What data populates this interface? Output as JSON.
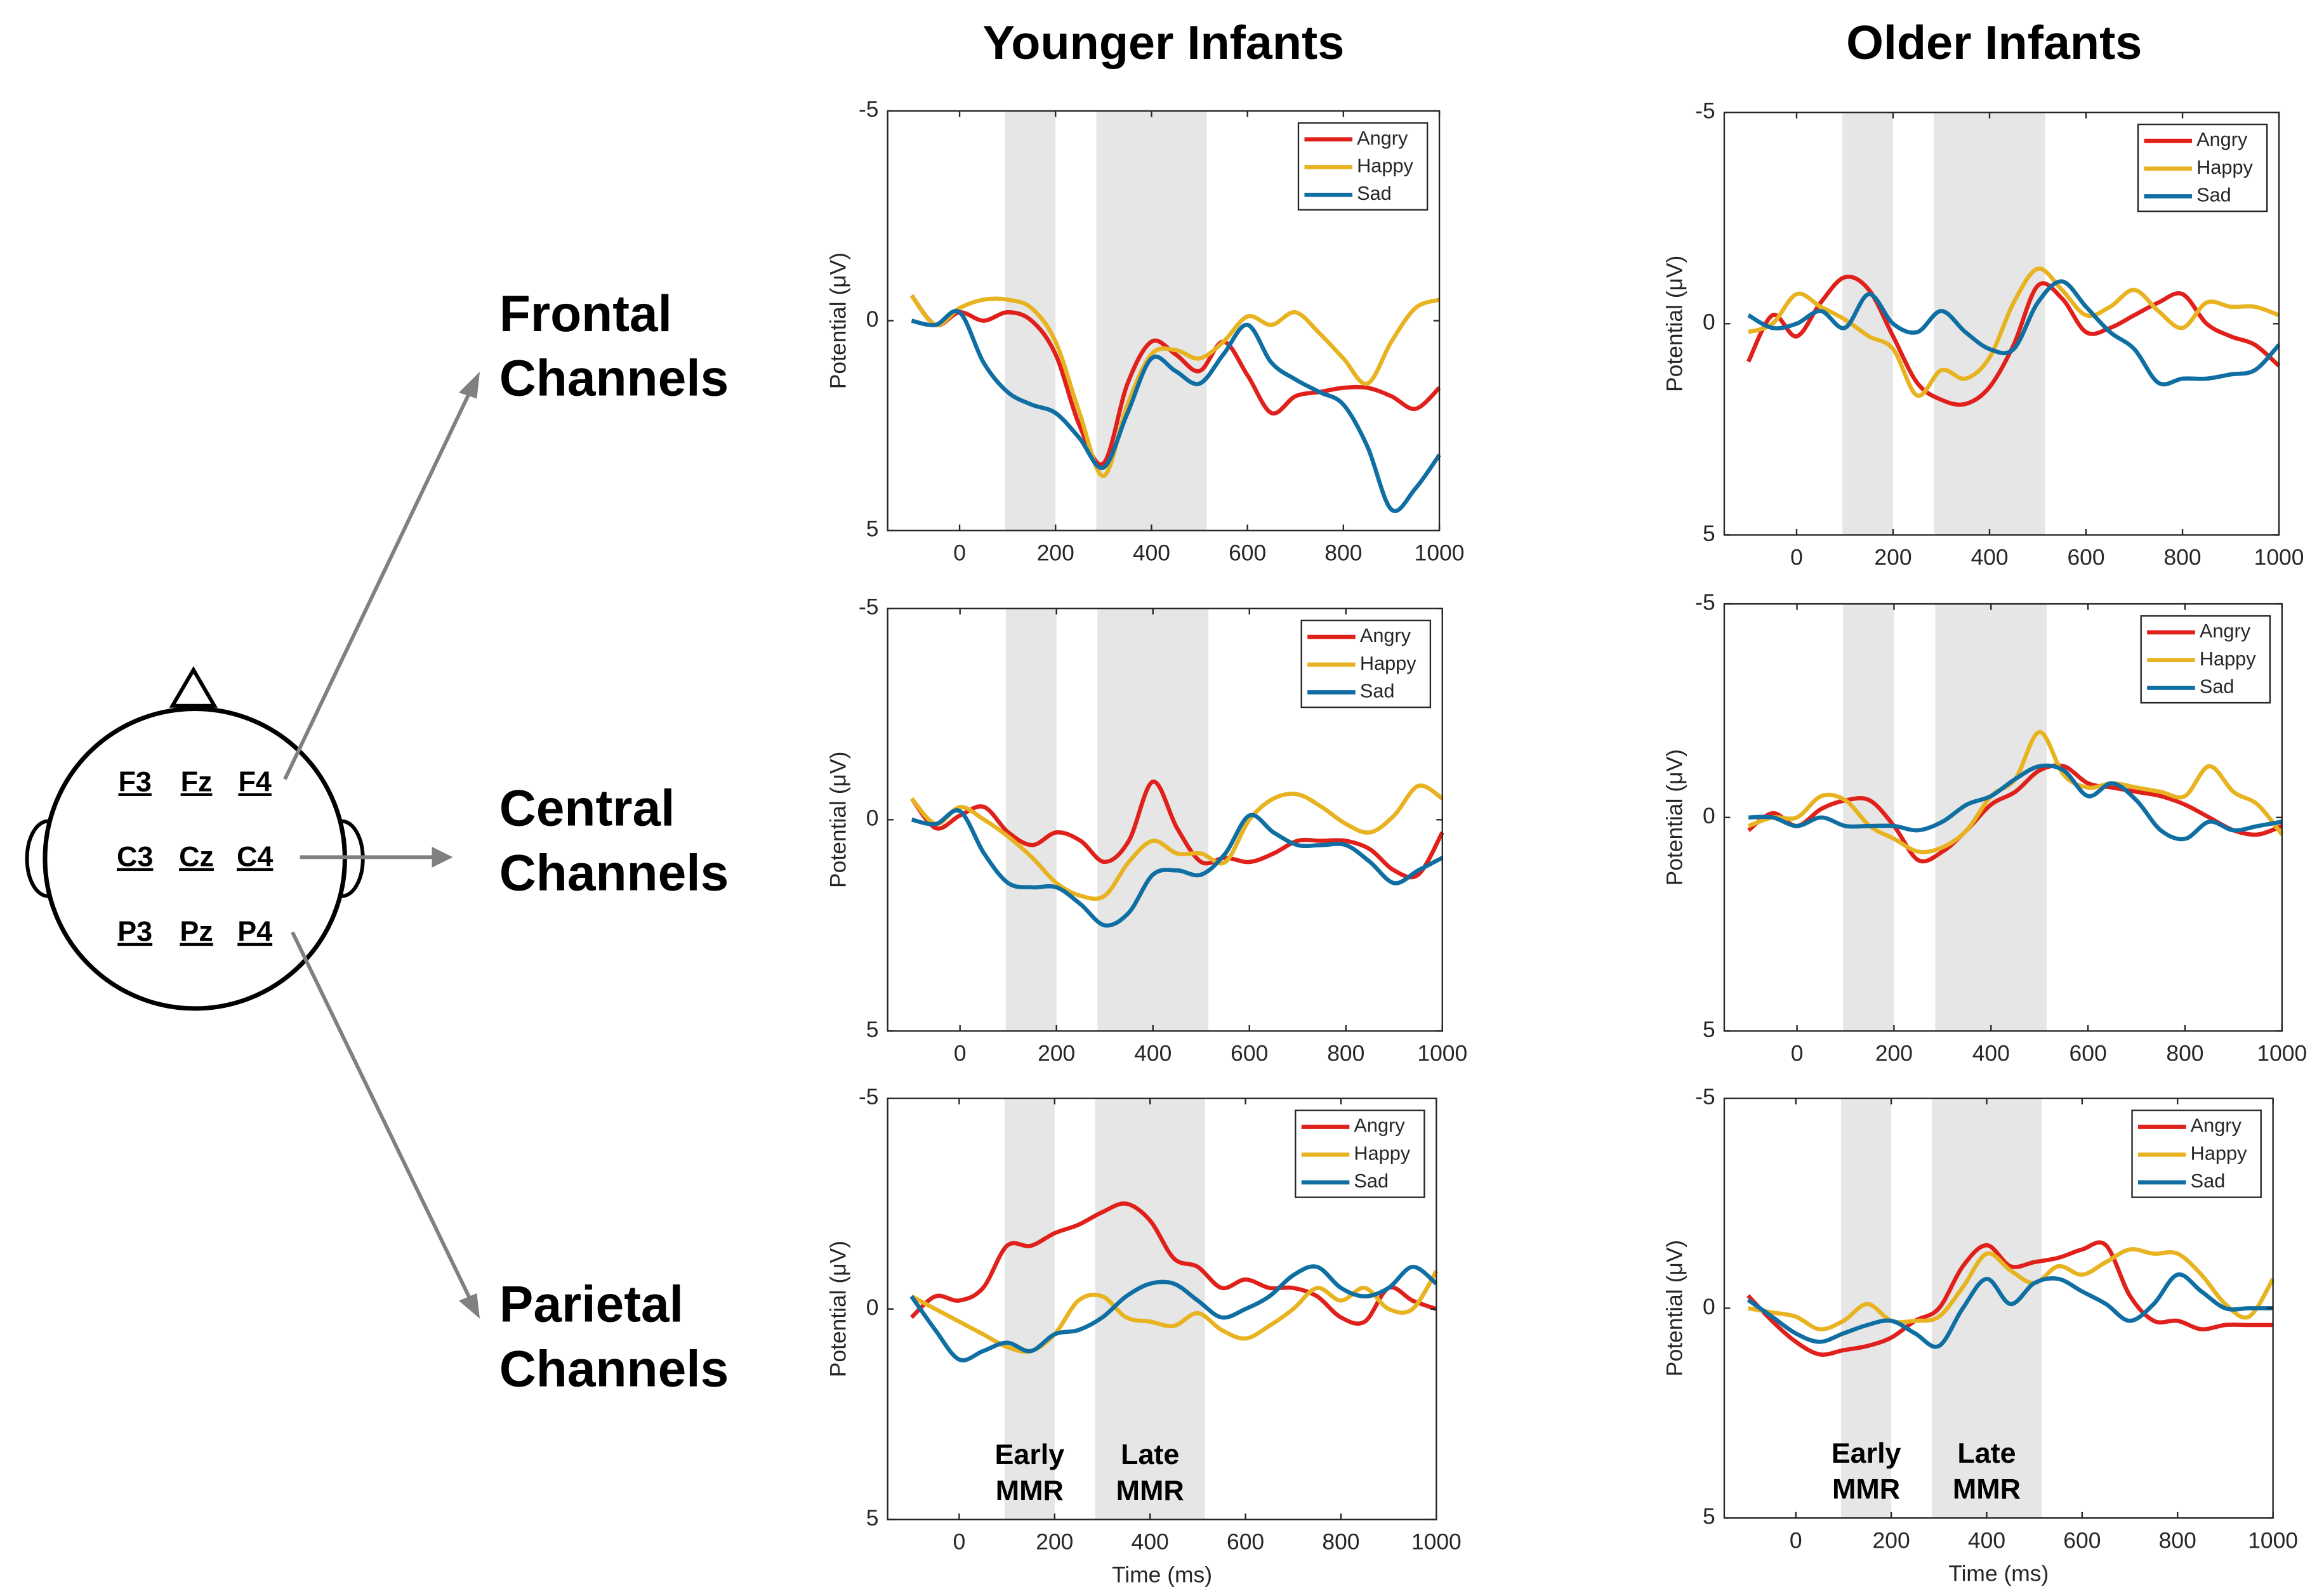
{
  "column_titles": [
    "Younger Infants",
    "Older Infants"
  ],
  "row_labels": [
    [
      "Frontal",
      "Channels"
    ],
    [
      "Central",
      "Channels"
    ],
    [
      "Parietal",
      "Channels"
    ]
  ],
  "electrode_rows": [
    [
      "F3",
      "Fz",
      "F4"
    ],
    [
      "C3",
      "Cz",
      "C4"
    ],
    [
      "P3",
      "Pz",
      "P4"
    ]
  ],
  "chart_data": [
    {
      "type": "line",
      "x": [
        -100,
        -50,
        0,
        50,
        100,
        150,
        200,
        250,
        300,
        350,
        400,
        450,
        500,
        550,
        600,
        650,
        700,
        750,
        800,
        850,
        900,
        950,
        1000
      ],
      "xlim": [
        -150,
        1000
      ],
      "xticks": [
        0,
        200,
        400,
        600,
        800,
        1000
      ],
      "ylim": [
        -5,
        5
      ],
      "yticks": [
        -5,
        0,
        5
      ],
      "y_inverted": true,
      "ylabel": "Potential (μV)",
      "shaded_regions": [
        [
          95,
          200
        ],
        [
          285,
          515
        ]
      ],
      "legend": "upper right",
      "series": [
        {
          "name": "Angry",
          "color": "#e0201b",
          "values": [
            -0.6,
            0.1,
            -0.2,
            0,
            -0.2,
            0,
            0.8,
            2.5,
            3.4,
            1.5,
            0.5,
            0.8,
            1.2,
            0.5,
            1.3,
            2.2,
            1.8,
            1.7,
            1.6,
            1.6,
            1.8,
            2.1,
            1.6
          ]
        },
        {
          "name": "Happy",
          "color": "#e8b321",
          "values": [
            -0.6,
            0.1,
            -0.3,
            -0.5,
            -0.5,
            -0.3,
            0.5,
            2.2,
            3.7,
            2.0,
            0.8,
            0.7,
            0.9,
            0.5,
            -0.1,
            0.1,
            -0.2,
            0.3,
            0.9,
            1.5,
            0.5,
            -0.3,
            -0.5
          ]
        },
        {
          "name": "Sad",
          "color": "#0f6fa3",
          "values": [
            0,
            0.1,
            -0.2,
            1.0,
            1.7,
            2.0,
            2.2,
            2.8,
            3.5,
            2.2,
            0.9,
            1.2,
            1.5,
            0.8,
            0.1,
            1.0,
            1.4,
            1.7,
            2.0,
            3.0,
            4.5,
            4.0,
            3.2
          ]
        }
      ]
    },
    {
      "type": "line",
      "x": [
        -100,
        -50,
        0,
        50,
        100,
        150,
        200,
        250,
        300,
        350,
        400,
        450,
        500,
        550,
        600,
        650,
        700,
        750,
        800,
        850,
        900,
        950,
        1000
      ],
      "xlim": [
        -150,
        1000
      ],
      "xticks": [
        0,
        200,
        400,
        600,
        800,
        1000
      ],
      "ylim": [
        -5,
        5
      ],
      "yticks": [
        -5,
        0,
        5
      ],
      "y_inverted": true,
      "ylabel": "Potential (μV)",
      "shaded_regions": [
        [
          95,
          200
        ],
        [
          285,
          515
        ]
      ],
      "legend": "upper right",
      "series": [
        {
          "name": "Angry",
          "color": "#e0201b",
          "values": [
            0.9,
            -0.2,
            0.3,
            -0.5,
            -1.1,
            -0.8,
            0.3,
            1.4,
            1.8,
            1.9,
            1.5,
            0.5,
            -0.9,
            -0.6,
            0.2,
            0.1,
            -0.2,
            -0.5,
            -0.7,
            0,
            0.3,
            0.5,
            1.0
          ]
        },
        {
          "name": "Happy",
          "color": "#e8b321",
          "values": [
            0.2,
            0,
            -0.7,
            -0.4,
            -0.1,
            0.3,
            0.6,
            1.7,
            1.1,
            1.3,
            0.8,
            -0.5,
            -1.3,
            -0.8,
            -0.2,
            -0.4,
            -0.8,
            -0.3,
            0.1,
            -0.5,
            -0.4,
            -0.4,
            -0.2
          ]
        },
        {
          "name": "Sad",
          "color": "#0f6fa3",
          "values": [
            -0.2,
            0.1,
            0,
            -0.3,
            0.1,
            -0.7,
            0,
            0.2,
            -0.3,
            0.2,
            0.6,
            0.6,
            -0.5,
            -1.0,
            -0.4,
            0.2,
            0.6,
            1.4,
            1.3,
            1.3,
            1.2,
            1.1,
            0.5
          ]
        }
      ]
    },
    {
      "type": "line",
      "x": [
        -100,
        -50,
        0,
        50,
        100,
        150,
        200,
        250,
        300,
        350,
        400,
        450,
        500,
        550,
        600,
        650,
        700,
        750,
        800,
        850,
        900,
        950,
        1000
      ],
      "xlim": [
        -150,
        1000
      ],
      "xticks": [
        0,
        200,
        400,
        600,
        800,
        1000
      ],
      "ylim": [
        -5,
        5
      ],
      "yticks": [
        -5,
        0,
        5
      ],
      "y_inverted": true,
      "ylabel": "Potential (μV)",
      "shaded_regions": [
        [
          95,
          200
        ],
        [
          285,
          515
        ]
      ],
      "legend": "upper right",
      "series": [
        {
          "name": "Angry",
          "color": "#e0201b",
          "values": [
            -0.5,
            0.2,
            -0.1,
            -0.3,
            0.3,
            0.6,
            0.3,
            0.5,
            1.0,
            0.5,
            -0.9,
            0.2,
            1.0,
            0.9,
            1.0,
            0.8,
            0.5,
            0.5,
            0.5,
            0.7,
            1.2,
            1.3,
            0.3
          ]
        },
        {
          "name": "Happy",
          "color": "#e8b321",
          "values": [
            -0.5,
            0.1,
            -0.3,
            0,
            0.4,
            0.9,
            1.5,
            1.8,
            1.8,
            1.0,
            0.5,
            0.8,
            0.8,
            1.0,
            0,
            -0.5,
            -0.6,
            -0.3,
            0.1,
            0.3,
            -0.1,
            -0.8,
            -0.5
          ]
        },
        {
          "name": "Sad",
          "color": "#0f6fa3",
          "values": [
            0,
            0.1,
            -0.2,
            0.8,
            1.5,
            1.6,
            1.6,
            2.0,
            2.5,
            2.2,
            1.3,
            1.2,
            1.3,
            0.8,
            -0.1,
            0.3,
            0.6,
            0.6,
            0.6,
            1.0,
            1.5,
            1.2,
            0.9
          ]
        }
      ]
    },
    {
      "type": "line",
      "x": [
        -100,
        -50,
        0,
        50,
        100,
        150,
        200,
        250,
        300,
        350,
        400,
        450,
        500,
        550,
        600,
        650,
        700,
        750,
        800,
        850,
        900,
        950,
        1000
      ],
      "xlim": [
        -150,
        1000
      ],
      "xticks": [
        0,
        200,
        400,
        600,
        800,
        1000
      ],
      "ylim": [
        -5,
        5
      ],
      "yticks": [
        -5,
        0,
        5
      ],
      "y_inverted": true,
      "ylabel": "Potential (μV)",
      "shaded_regions": [
        [
          95,
          200
        ],
        [
          285,
          515
        ]
      ],
      "legend": "upper right",
      "series": [
        {
          "name": "Angry",
          "color": "#e0201b",
          "values": [
            0.3,
            -0.1,
            0.2,
            -0.2,
            -0.4,
            -0.4,
            0.2,
            1.0,
            0.8,
            0.3,
            -0.3,
            -0.6,
            -1.1,
            -1.2,
            -0.8,
            -0.7,
            -0.6,
            -0.5,
            -0.3,
            0,
            0.3,
            0.4,
            0.2
          ]
        },
        {
          "name": "Happy",
          "color": "#e8b321",
          "values": [
            0.2,
            0,
            0,
            -0.5,
            -0.4,
            0.2,
            0.5,
            0.8,
            0.7,
            0.3,
            -0.5,
            -0.9,
            -2.0,
            -1.0,
            -0.7,
            -0.8,
            -0.7,
            -0.6,
            -0.5,
            -1.2,
            -0.6,
            -0.3,
            0.4
          ]
        },
        {
          "name": "Sad",
          "color": "#0f6fa3",
          "values": [
            0,
            0,
            0.2,
            0,
            0.2,
            0.2,
            0.2,
            0.3,
            0.1,
            -0.3,
            -0.5,
            -0.9,
            -1.2,
            -1.1,
            -0.5,
            -0.8,
            -0.4,
            0.3,
            0.5,
            0.1,
            0.3,
            0.2,
            0.1
          ]
        }
      ]
    },
    {
      "type": "line",
      "x": [
        -100,
        -50,
        0,
        50,
        100,
        150,
        200,
        250,
        300,
        350,
        400,
        450,
        500,
        550,
        600,
        650,
        700,
        750,
        800,
        850,
        900,
        950,
        1000
      ],
      "xlim": [
        -150,
        1000
      ],
      "xticks": [
        0,
        200,
        400,
        600,
        800,
        1000
      ],
      "ylim": [
        -5,
        5
      ],
      "yticks": [
        -5,
        0,
        5
      ],
      "y_inverted": true,
      "ylabel": "Potential (μV)",
      "xlabel": "Time (ms)",
      "shaded_regions": [
        [
          95,
          200
        ],
        [
          285,
          515
        ]
      ],
      "legend": "upper right",
      "annotations": [
        [
          "Early",
          "MMR"
        ],
        [
          "Late",
          "MMR"
        ]
      ],
      "series": [
        {
          "name": "Angry",
          "color": "#e0201b",
          "values": [
            0.2,
            -0.3,
            -0.2,
            -0.5,
            -1.5,
            -1.5,
            -1.8,
            -2.0,
            -2.3,
            -2.5,
            -2.1,
            -1.2,
            -1.0,
            -0.5,
            -0.7,
            -0.5,
            -0.5,
            -0.3,
            0.2,
            0.3,
            -0.5,
            -0.2,
            0
          ]
        },
        {
          "name": "Happy",
          "color": "#e8b321",
          "values": [
            -0.3,
            0,
            0.3,
            0.6,
            0.9,
            1.0,
            0.6,
            -0.2,
            -0.3,
            0.2,
            0.3,
            0.4,
            0.1,
            0.5,
            0.7,
            0.4,
            0,
            -0.5,
            -0.2,
            -0.5,
            0,
            0,
            -0.9
          ]
        },
        {
          "name": "Sad",
          "color": "#0f6fa3",
          "values": [
            -0.3,
            0.5,
            1.2,
            1.0,
            0.8,
            1.0,
            0.6,
            0.5,
            0.2,
            -0.3,
            -0.6,
            -0.6,
            -0.2,
            0.2,
            0,
            -0.3,
            -0.8,
            -1.0,
            -0.5,
            -0.3,
            -0.5,
            -1.0,
            -0.6
          ]
        }
      ]
    },
    {
      "type": "line",
      "x": [
        -100,
        -50,
        0,
        50,
        100,
        150,
        200,
        250,
        300,
        350,
        400,
        450,
        500,
        550,
        600,
        650,
        700,
        750,
        800,
        850,
        900,
        950,
        1000
      ],
      "xlim": [
        -150,
        1000
      ],
      "xticks": [
        0,
        200,
        400,
        600,
        800,
        1000
      ],
      "ylim": [
        -5,
        5
      ],
      "yticks": [
        -5,
        0,
        5
      ],
      "y_inverted": true,
      "ylabel": "Potential (μV)",
      "xlabel": "Time (ms)",
      "shaded_regions": [
        [
          95,
          200
        ],
        [
          285,
          515
        ]
      ],
      "legend": "upper right",
      "annotations": [
        [
          "Early",
          "MMR"
        ],
        [
          "Late",
          "MMR"
        ]
      ],
      "series": [
        {
          "name": "Angry",
          "color": "#e0201b",
          "values": [
            -0.3,
            0.3,
            0.8,
            1.1,
            1.0,
            0.9,
            0.7,
            0.3,
            0,
            -1.0,
            -1.5,
            -1.0,
            -1.1,
            -1.2,
            -1.4,
            -1.5,
            -0.3,
            0.3,
            0.3,
            0.5,
            0.4,
            0.4,
            0.4
          ]
        },
        {
          "name": "Happy",
          "color": "#e8b321",
          "values": [
            0,
            0.1,
            0.2,
            0.5,
            0.3,
            -0.1,
            0.3,
            0.3,
            0.2,
            -0.5,
            -1.3,
            -0.9,
            -0.6,
            -1.0,
            -0.8,
            -1.1,
            -1.4,
            -1.3,
            -1.3,
            -0.8,
            -0.1,
            0.2,
            -0.7
          ]
        },
        {
          "name": "Sad",
          "color": "#0f6fa3",
          "values": [
            -0.2,
            0.2,
            0.6,
            0.8,
            0.6,
            0.4,
            0.3,
            0.6,
            0.9,
            0,
            -0.7,
            -0.1,
            -0.6,
            -0.7,
            -0.4,
            -0.1,
            0.3,
            -0.1,
            -0.8,
            -0.4,
            0,
            0,
            0
          ]
        }
      ]
    }
  ]
}
